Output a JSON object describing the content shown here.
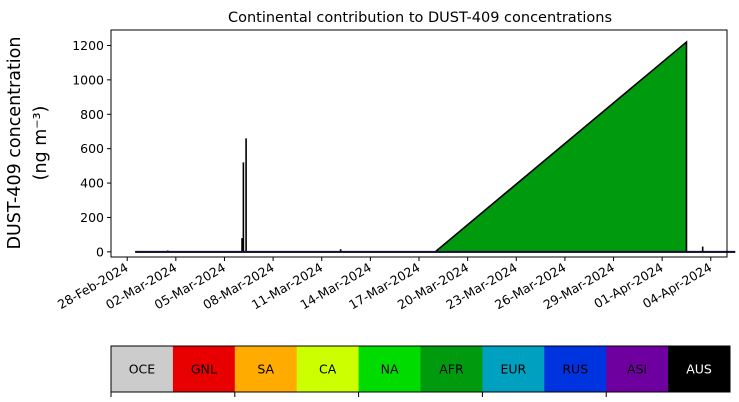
{
  "chart_data": {
    "type": "area",
    "title": "Continental contribution to DUST-409 concentrations",
    "ylabel_line1": "DUST-409 concentration",
    "ylabel_line2": "(ng m⁻³)",
    "xlabel": "",
    "ylim": [
      -30,
      1290
    ],
    "yticks": [
      0,
      200,
      400,
      600,
      800,
      1000,
      1200
    ],
    "xlim": [
      "2024-02-27",
      "2024-04-05"
    ],
    "xticks": [
      "28-Feb-2024",
      "02-Mar-2024",
      "05-Mar-2024",
      "08-Mar-2024",
      "11-Mar-2024",
      "14-Mar-2024",
      "17-Mar-2024",
      "20-Mar-2024",
      "23-Mar-2024",
      "26-Mar-2024",
      "29-Mar-2024",
      "01-Apr-2024",
      "04-Apr-2024"
    ],
    "grid": false,
    "series": [
      {
        "name": "AFR",
        "color": "#009a0e",
        "points": [
          [
            "2024-02-28T12:00",
            0
          ],
          [
            "2024-03-18T00:00",
            0
          ],
          [
            "2024-04-02T12:00",
            1220
          ],
          [
            "2024-04-02T12:00",
            0
          ],
          [
            "2024-04-05T12:00",
            0
          ]
        ]
      },
      {
        "name": "AUS",
        "color": "#000000",
        "points": [
          [
            "2024-02-28T12:00",
            0
          ],
          [
            "2024-03-01T12:00",
            0
          ],
          [
            "2024-03-01T12:00",
            8
          ],
          [
            "2024-03-01T12:00",
            0
          ],
          [
            "2024-03-06T02:00",
            0
          ],
          [
            "2024-03-06T02:00",
            80
          ],
          [
            "2024-03-06T02:00",
            0
          ],
          [
            "2024-03-06T04:00",
            0
          ],
          [
            "2024-03-06T04:00",
            520
          ],
          [
            "2024-03-06T04:00",
            0
          ],
          [
            "2024-03-06T08:00",
            0
          ],
          [
            "2024-03-06T08:00",
            660
          ],
          [
            "2024-03-06T08:00",
            0
          ],
          [
            "2024-03-12T04:00",
            0
          ],
          [
            "2024-03-12T04:00",
            15
          ],
          [
            "2024-03-12T04:00",
            0
          ],
          [
            "2024-04-03T12:00",
            0
          ],
          [
            "2024-04-03T12:00",
            30
          ],
          [
            "2024-04-03T12:00",
            0
          ],
          [
            "2024-04-05T12:00",
            0
          ]
        ]
      }
    ],
    "legend": {
      "placement": "bottom",
      "items": [
        {
          "label": "OCE",
          "color": "#cccccc",
          "text_color": "#000000"
        },
        {
          "label": "GNL",
          "color": "#e80000",
          "text_color": "#000000"
        },
        {
          "label": "SA",
          "color": "#ffab00",
          "text_color": "#000000"
        },
        {
          "label": "CA",
          "color": "#ccff00",
          "text_color": "#000000"
        },
        {
          "label": "NA",
          "color": "#00dc00",
          "text_color": "#000000"
        },
        {
          "label": "AFR",
          "color": "#009a0e",
          "text_color": "#000000"
        },
        {
          "label": "EUR",
          "color": "#00a0c0",
          "text_color": "#000000"
        },
        {
          "label": "RUS",
          "color": "#0033e0",
          "text_color": "#000000"
        },
        {
          "label": "ASI",
          "color": "#6e00a0",
          "text_color": "#000000"
        },
        {
          "label": "AUS",
          "color": "#000000",
          "text_color": "#ffffff"
        }
      ]
    }
  }
}
